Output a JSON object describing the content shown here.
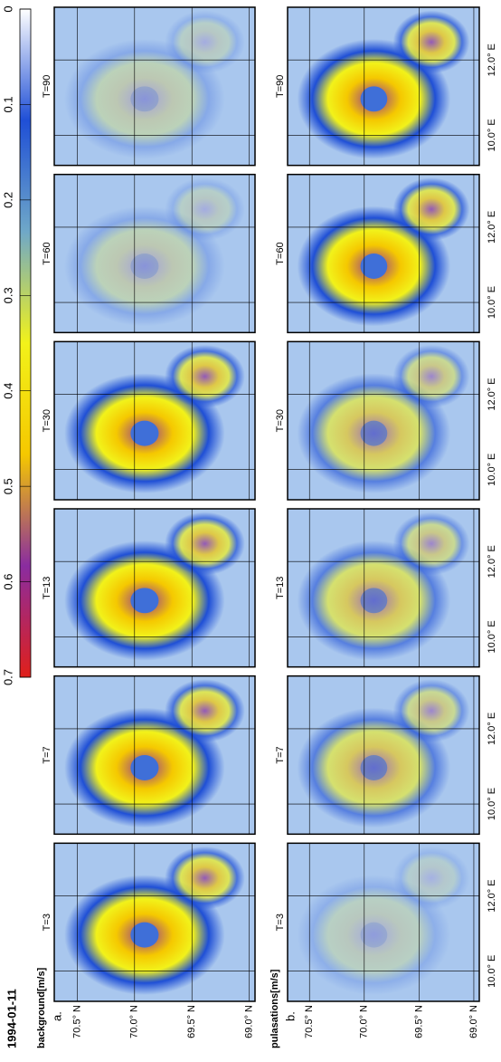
{
  "title": "1994-01-11",
  "rows": [
    {
      "tag": "a.",
      "label": "background[m/s]",
      "panels": [
        "T=3",
        "T=7",
        "T=13",
        "T=30",
        "T=60",
        "T=90"
      ]
    },
    {
      "tag": "b.",
      "label": "pulasations[m/s]",
      "panels": [
        "T=3",
        "T=7",
        "T=13",
        "T=30",
        "T=60",
        "T=90"
      ]
    }
  ],
  "lat_axis": {
    "lim": [
      68.95,
      70.7
    ],
    "ticks": [
      {
        "value": 70.5,
        "label": "70.5° N"
      },
      {
        "value": 70.0,
        "label": "70.0° N"
      },
      {
        "value": 69.5,
        "label": "69.5° N"
      },
      {
        "value": 69.0,
        "label": "69.0° N"
      }
    ]
  },
  "lon_axis": {
    "lim": [
      9.2,
      13.4
    ],
    "ticks": [
      {
        "value": 10.0,
        "label": "10.0° E"
      },
      {
        "value": 12.0,
        "label": "12.0° E"
      }
    ]
  },
  "colorbar": {
    "lim": [
      0.7,
      0
    ],
    "ticks": [
      0.7,
      0.6,
      0.5,
      0.4,
      0.3,
      0.2,
      0.1,
      0
    ],
    "colors": [
      "#ffffff",
      "#1f4fd6",
      "#6fa8c8",
      "#f2f21a",
      "#f5c800",
      "#8a2ca0",
      "#e0201a"
    ]
  }
}
